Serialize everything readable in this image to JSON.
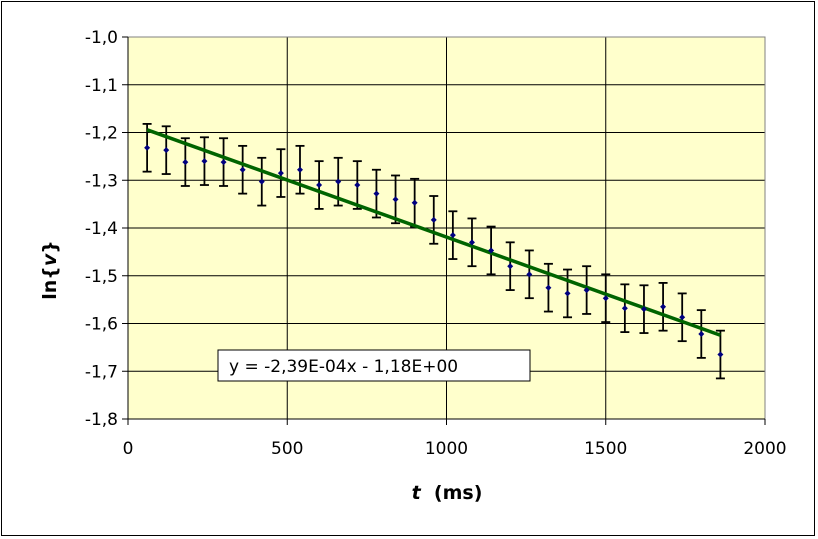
{
  "chart_data": {
    "type": "scatter",
    "xlabel": {
      "var": "t",
      "unit": "  (ms)"
    },
    "ylabel": {
      "pre": "ln{",
      "var": "v",
      "post": "}"
    },
    "xlim": [
      0,
      2000
    ],
    "ylim": [
      -1.8,
      -1.0
    ],
    "x_ticks": [
      0,
      500,
      1000,
      1500,
      2000
    ],
    "x_tick_labels": [
      "0",
      "500",
      "1000",
      "1500",
      "2000"
    ],
    "y_ticks": [
      -1.0,
      -1.1,
      -1.2,
      -1.3,
      -1.4,
      -1.5,
      -1.6,
      -1.7,
      -1.8
    ],
    "y_tick_labels": [
      "-1,0",
      "-1,1",
      "-1,2",
      "-1,3",
      "-1,4",
      "-1,5",
      "-1,6",
      "-1,7",
      "-1,8"
    ],
    "grid": true,
    "legend": "none",
    "plot_background": "#ffffcc",
    "colors": {
      "points": "#000080",
      "trendline": "#006400",
      "error_bars": "#000000"
    },
    "series": [
      {
        "x": [
          60,
          120,
          180,
          240,
          300,
          360,
          420,
          480,
          540,
          600,
          660,
          720,
          780,
          840,
          900,
          960,
          1020,
          1080,
          1140,
          1200,
          1260,
          1320,
          1380,
          1440,
          1500,
          1560,
          1620,
          1680,
          1740,
          1800,
          1860
        ],
        "y": [
          -1.232,
          -1.237,
          -1.262,
          -1.26,
          -1.262,
          -1.278,
          -1.303,
          -1.285,
          -1.278,
          -1.31,
          -1.303,
          -1.31,
          -1.328,
          -1.34,
          -1.347,
          -1.383,
          -1.415,
          -1.43,
          -1.447,
          -1.48,
          -1.497,
          -1.525,
          -1.537,
          -1.53,
          -1.547,
          -1.568,
          -1.57,
          -1.565,
          -1.587,
          -1.622,
          -1.665
        ],
        "error": 0.05
      }
    ],
    "trendline": {
      "type": "linear",
      "slope": -0.000239,
      "intercept": -1.18,
      "x_range": [
        60,
        1860
      ],
      "equation": "y = -2,39E-04x - 1,18E+00"
    }
  }
}
